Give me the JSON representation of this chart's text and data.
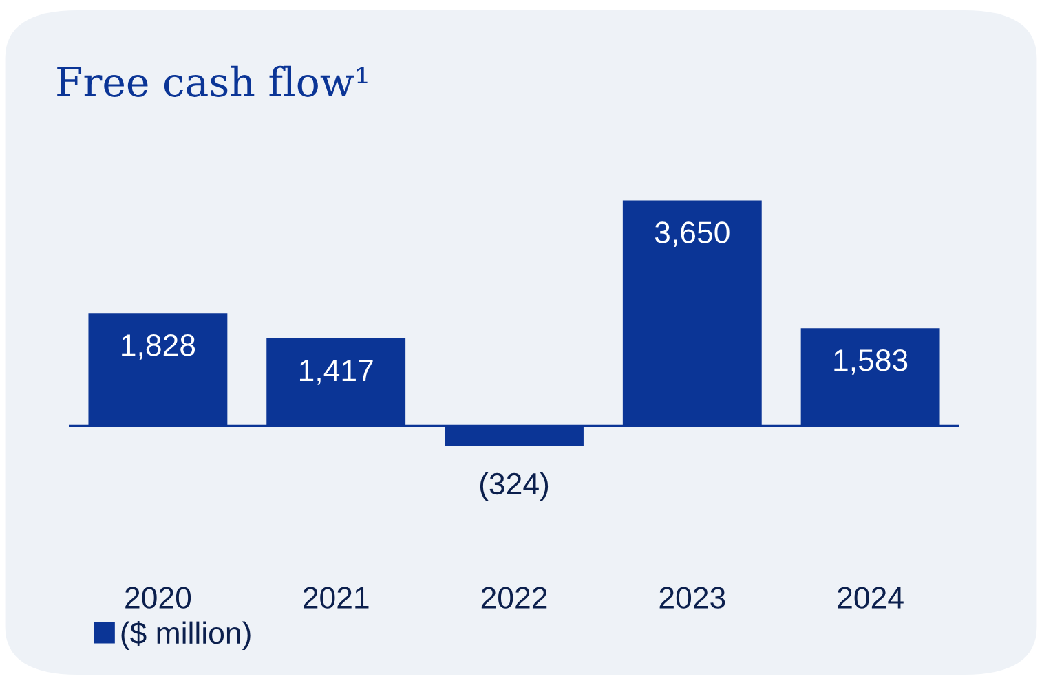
{
  "chart_data": {
    "type": "bar",
    "title": "Free cash flow¹",
    "categories": [
      "2020",
      "2021",
      "2022",
      "2023",
      "2024"
    ],
    "series": [
      {
        "name": "($ million)",
        "color": "#0b3596",
        "values": [
          1828,
          1417,
          -324,
          3650,
          1583
        ],
        "value_labels": [
          "1,828",
          "1,417",
          "(324)",
          "3,650",
          "1,583"
        ]
      }
    ],
    "ref_lines": [
      {
        "axis": "y",
        "value": 0,
        "color": "#0b3596"
      }
    ],
    "legend": "bottom left"
  }
}
